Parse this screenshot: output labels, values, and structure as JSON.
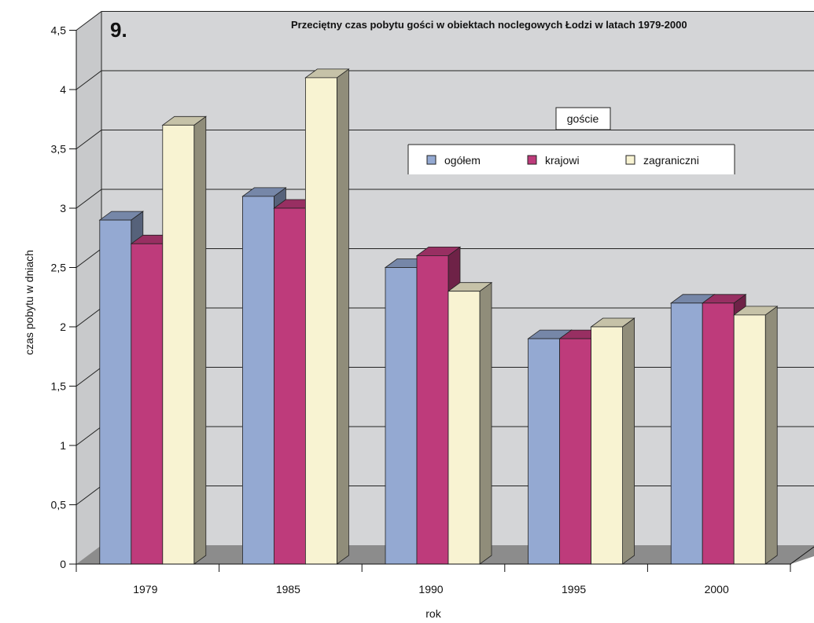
{
  "chart_data": {
    "type": "bar",
    "number": "9.",
    "title": "Przeciętny czas pobytu gości w obiektach noclegowych Łodzi w latach 1979-2000",
    "xlabel": "rok",
    "ylabel": "czas pobytu w dniach",
    "categories": [
      "1979",
      "1985",
      "1990",
      "1995",
      "2000"
    ],
    "series": [
      {
        "name": "ogółem",
        "color": "#94a9d2",
        "values": [
          2.9,
          3.1,
          2.5,
          1.9,
          2.2
        ]
      },
      {
        "name": "krajowi",
        "color": "#be3b7b",
        "values": [
          2.7,
          3.0,
          2.6,
          1.9,
          2.2
        ]
      },
      {
        "name": "zagraniczni",
        "color": "#f8f3d2",
        "values": [
          3.7,
          4.1,
          2.3,
          2.0,
          2.1
        ]
      }
    ],
    "ylim": [
      0,
      4.5
    ],
    "yticks": [
      "0",
      "0,5",
      "1",
      "1,5",
      "2",
      "2,5",
      "3",
      "3,5",
      "4",
      "4,5"
    ],
    "grid": true,
    "legend_title": "goście",
    "legend_position": "top-right",
    "three_d": true,
    "wall_color": "#d4d5d7",
    "floor_color": "#8c8c8c"
  }
}
